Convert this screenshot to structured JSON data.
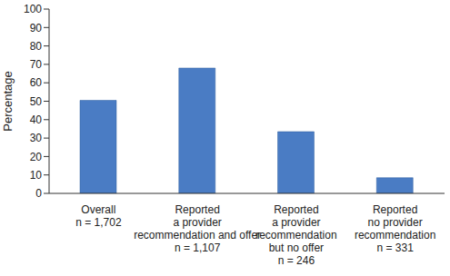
{
  "chart_data": {
    "type": "bar",
    "ylabel": "Percentage",
    "categories": [
      "Overall\nn = 1,702",
      "Reported\na provider\nrecommendation and offer\nn = 1,107",
      "Reported\na provider\nrecommendation\nbut no offer\nn = 246",
      "Reported\nno provider\nrecommendation\nn = 331"
    ],
    "values": [
      50.5,
      68,
      33.5,
      8.5
    ],
    "color": "#4a7cc4",
    "ylim": [
      0,
      100
    ],
    "yticks": [
      0,
      10,
      20,
      30,
      40,
      50,
      60,
      70,
      80,
      90,
      100
    ],
    "grid": false
  }
}
